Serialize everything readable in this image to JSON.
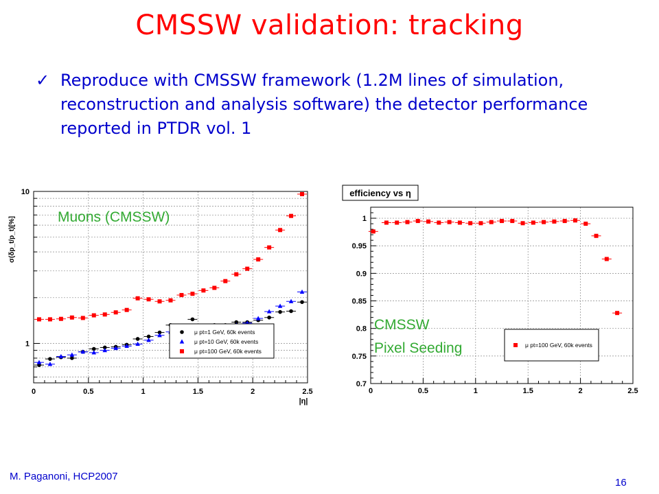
{
  "slide": {
    "title": "CMSSW validation: tracking",
    "bullet_icon": "checkmark-icon",
    "bullet": "Reproduce with CMSSW framework (1.2M lines of simulation, reconstruction and analysis software) the detector performance reported in PTDR vol. 1",
    "footer_author": "M. Paganoni, HCP2007",
    "page_number": "16",
    "colors": {
      "title": "#ff0000",
      "bullet_text": "#0000cc",
      "annotation": "#33aa33"
    }
  },
  "chart_data": [
    {
      "type": "scatter",
      "annotation": "Muons (CMSSW)",
      "ylabel": "σ(δp_t/p_t)[%]",
      "xlabel": "|η|",
      "xlim": [
        0,
        2.5
      ],
      "ylim": [
        0.55,
        10
      ],
      "yscale": "log",
      "xticks": [
        "0",
        "0.5",
        "1",
        "1.5",
        "2",
        "2.5"
      ],
      "yticks": [
        "1",
        "10"
      ],
      "grid": true,
      "legend_position": "bottom-right",
      "series": [
        {
          "name": "μ pt=1 GeV, 60k events",
          "marker": "circle",
          "color": "#000000",
          "x": [
            0.05,
            0.15,
            0.25,
            0.35,
            0.45,
            0.55,
            0.65,
            0.75,
            0.85,
            0.95,
            1.05,
            1.15,
            1.25,
            1.35,
            1.45,
            1.55,
            1.65,
            1.75,
            1.85,
            1.95,
            2.05,
            2.15,
            2.25,
            2.35,
            2.45
          ],
          "values": [
            0.72,
            0.79,
            0.81,
            0.8,
            0.88,
            0.92,
            0.94,
            0.95,
            0.98,
            1.07,
            1.11,
            1.18,
            1.32,
            1.26,
            1.44,
            1.3,
            1.32,
            1.32,
            1.38,
            1.38,
            1.42,
            1.48,
            1.61,
            1.63,
            1.87
          ]
        },
        {
          "name": "μ pt=10 GeV, 60k events",
          "marker": "triangle",
          "color": "#0000ff",
          "x": [
            0.05,
            0.15,
            0.25,
            0.35,
            0.45,
            0.55,
            0.65,
            0.75,
            0.85,
            0.95,
            1.05,
            1.15,
            1.25,
            1.35,
            1.45,
            1.55,
            1.65,
            1.75,
            1.85,
            1.95,
            2.05,
            2.15,
            2.25,
            2.35,
            2.45
          ],
          "values": [
            0.75,
            0.73,
            0.82,
            0.84,
            0.88,
            0.87,
            0.9,
            0.93,
            0.96,
            0.99,
            1.05,
            1.13,
            1.19,
            1.23,
            1.23,
            1.24,
            1.25,
            1.3,
            1.32,
            1.36,
            1.46,
            1.62,
            1.76,
            1.89,
            2.18
          ]
        },
        {
          "name": "μ pt=100 GeV, 60k events",
          "marker": "square",
          "color": "#ff0000",
          "x": [
            0.05,
            0.15,
            0.25,
            0.35,
            0.45,
            0.55,
            0.65,
            0.75,
            0.85,
            0.95,
            1.05,
            1.15,
            1.25,
            1.35,
            1.45,
            1.55,
            1.65,
            1.75,
            1.85,
            1.95,
            2.05,
            2.15,
            2.25,
            2.35,
            2.45
          ],
          "values": [
            1.44,
            1.44,
            1.45,
            1.48,
            1.47,
            1.53,
            1.55,
            1.6,
            1.66,
            1.98,
            1.95,
            1.89,
            1.92,
            2.08,
            2.12,
            2.23,
            2.32,
            2.57,
            2.85,
            3.1,
            3.57,
            4.28,
            5.57,
            6.9,
            9.6
          ]
        }
      ]
    },
    {
      "type": "scatter",
      "title": "efficiency vs η",
      "annotation": [
        "CMSSW",
        "Pixel Seeding"
      ],
      "xlim": [
        0,
        2.5
      ],
      "ylim": [
        0.7,
        1.02
      ],
      "xticks": [
        "0",
        "0.5",
        "1",
        "1.5",
        "2",
        "2.5"
      ],
      "yticks": [
        "0.7",
        "0.75",
        "0.8",
        "0.85",
        "0.9",
        "0.95",
        "1"
      ],
      "grid": true,
      "legend_position": "bottom-right",
      "series": [
        {
          "name": "μ pt=100 GeV, 60k events",
          "marker": "square",
          "color": "#ff0000",
          "x": [
            0.025,
            0.15,
            0.25,
            0.35,
            0.45,
            0.55,
            0.65,
            0.75,
            0.85,
            0.95,
            1.05,
            1.15,
            1.25,
            1.35,
            1.45,
            1.55,
            1.65,
            1.75,
            1.85,
            1.95,
            2.05,
            2.15,
            2.25,
            2.35
          ],
          "values": [
            0.976,
            0.992,
            0.992,
            0.993,
            0.995,
            0.994,
            0.992,
            0.993,
            0.992,
            0.991,
            0.991,
            0.993,
            0.995,
            0.995,
            0.991,
            0.992,
            0.993,
            0.994,
            0.995,
            0.996,
            0.99,
            0.968,
            0.926,
            0.828
          ]
        }
      ]
    }
  ]
}
